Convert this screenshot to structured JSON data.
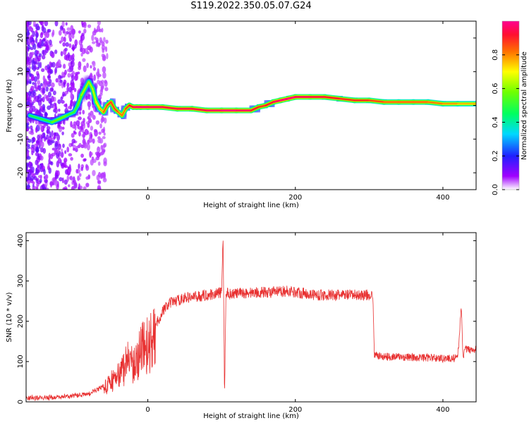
{
  "title": "S119.2022.350.05.07.G24",
  "chart_data": [
    {
      "type": "heatmap",
      "xlabel": "Height of straight line (km)",
      "ylabel": "Frequency (Hz)",
      "xlim": [
        -165,
        445
      ],
      "ylim": [
        -25,
        25
      ],
      "xticks": [
        0,
        200,
        400
      ],
      "yticks": [
        -20,
        -10,
        0,
        10,
        20
      ],
      "colorbar": {
        "label": "Normalized spectral amplitude",
        "range": [
          0,
          1
        ],
        "ticks": [
          0.0,
          0.2,
          0.4,
          0.6,
          0.8
        ],
        "colormap": "rainbow (white → violet → blue → cyan → green → yellow → red → magenta)"
      },
      "ridge": {
        "x": [
          -160,
          -145,
          -130,
          -120,
          -110,
          -100,
          -95,
          -90,
          -80,
          -75,
          -70,
          -65,
          -60,
          -55,
          -50,
          -45,
          -40,
          -35,
          -30,
          -25,
          -20,
          -15,
          -10,
          0,
          20,
          40,
          60,
          80,
          100,
          120,
          140,
          150,
          160,
          170,
          180,
          190,
          200,
          220,
          240,
          260,
          280,
          300,
          320,
          340,
          360,
          380,
          400,
          420,
          445
        ],
        "freq": [
          -3,
          -4,
          -5,
          -4,
          -3,
          -2,
          0,
          3,
          7,
          5,
          1,
          -1,
          -2,
          0,
          1,
          -1,
          -2,
          -3,
          -1,
          0,
          -0.5,
          -0.5,
          -0.5,
          -0.5,
          -0.5,
          -1,
          -1,
          -1.5,
          -1.5,
          -1.5,
          -1.5,
          -0.5,
          0,
          1,
          1.5,
          2,
          2.5,
          2.5,
          2.5,
          2,
          1.5,
          1.5,
          1,
          1,
          1,
          1,
          0.5,
          0.5,
          0.5
        ],
        "amplitude": [
          0.5,
          0.45,
          0.55,
          0.6,
          0.55,
          0.5,
          0.55,
          0.6,
          0.65,
          0.6,
          0.7,
          0.75,
          0.8,
          0.9,
          0.85,
          0.9,
          0.85,
          0.8,
          0.85,
          0.9,
          0.95,
          1,
          1,
          1,
          0.95,
          0.95,
          0.95,
          0.95,
          1,
          1,
          0.95,
          0.9,
          0.9,
          0.95,
          1,
          1,
          1,
          0.95,
          0.95,
          0.9,
          0.9,
          0.9,
          0.85,
          0.85,
          0.85,
          0.85,
          0.8,
          0.8,
          0.75
        ]
      }
    },
    {
      "type": "line",
      "xlabel": "Height of straight line (km)",
      "ylabel": "SNR (10 * v/v)",
      "xlim": [
        -165,
        445
      ],
      "ylim": [
        0,
        420
      ],
      "xticks": [
        0,
        200,
        400
      ],
      "yticks": [
        0,
        100,
        200,
        300,
        400
      ],
      "series": [
        {
          "color": "#e83030",
          "x": [
            -165,
            -140,
            -120,
            -100,
            -80,
            -60,
            -50,
            -40,
            -30,
            -25,
            -20,
            -10,
            0,
            10,
            20,
            30,
            50,
            70,
            90,
            100,
            102,
            104,
            106,
            108,
            110,
            130,
            150,
            170,
            190,
            210,
            230,
            250,
            270,
            290,
            305,
            307,
            309,
            320,
            340,
            360,
            380,
            400,
            420,
            425,
            427,
            430,
            445
          ],
          "y": [
            10,
            10,
            12,
            15,
            20,
            40,
            60,
            80,
            110,
            130,
            100,
            150,
            170,
            185,
            225,
            245,
            258,
            262,
            268,
            272,
            410,
            20,
            275,
            270,
            268,
            270,
            272,
            272,
            275,
            270,
            265,
            265,
            265,
            265,
            265,
            120,
            115,
            112,
            112,
            110,
            110,
            108,
            108,
            240,
            110,
            130,
            130
          ]
        }
      ]
    }
  ]
}
